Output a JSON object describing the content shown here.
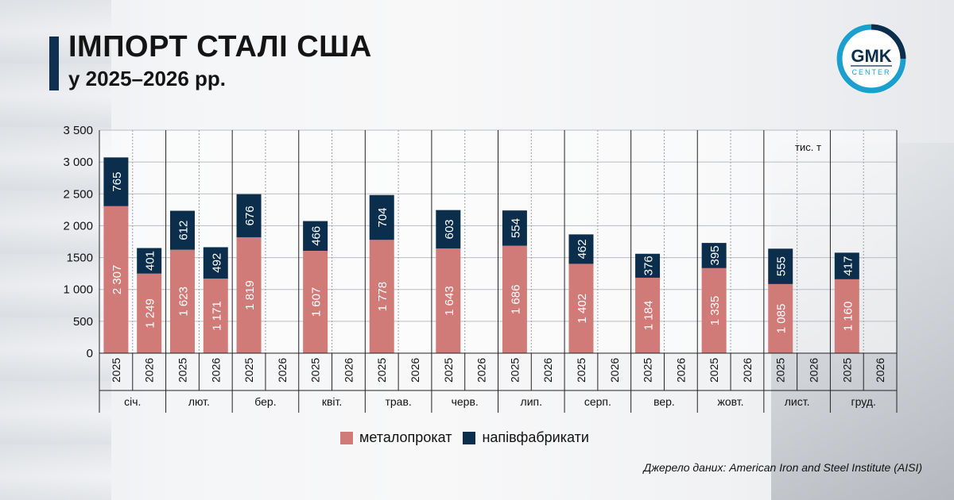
{
  "header": {
    "title": "ІМПОРТ СТАЛІ США",
    "subtitle": "у 2025–2026 рр."
  },
  "logo": {
    "top": "GMK",
    "bottom": "CENTER"
  },
  "unit_label": "тис. т",
  "legend": {
    "items": [
      {
        "label": "металопрокат",
        "color": "#d17b78"
      },
      {
        "label": "напівфабрикати",
        "color": "#0c2e4d"
      }
    ]
  },
  "source": "Джерело даних: American Iron and Steel Institute (AISI)",
  "colors": {
    "rolled": "#d17b78",
    "semi": "#0c2e4d",
    "title_bar": "#0f3050",
    "logo_ring": "#1a9fcf"
  },
  "chart_data": {
    "type": "bar",
    "stacked": true,
    "ylim": [
      0,
      3500
    ],
    "yticks": [
      0,
      500,
      1000,
      1500,
      2000,
      2500,
      3000,
      3500
    ],
    "ytick_labels": [
      "0",
      "500",
      "1 000",
      "1500",
      "2 000",
      "2 500",
      "3 000",
      "3 500"
    ],
    "grid": true,
    "legend_position": "bottom",
    "months": [
      "січ.",
      "лют.",
      "бер.",
      "квіт.",
      "трав.",
      "черв.",
      "лип.",
      "серп.",
      "вер.",
      "жовт.",
      "лист.",
      "груд."
    ],
    "years": [
      "2025",
      "2026"
    ],
    "series": [
      {
        "name": "металопрокат",
        "values_2025": [
          2307,
          1623,
          1819,
          1607,
          1778,
          1643,
          1686,
          1402,
          1184,
          1335,
          1085,
          1160
        ],
        "values_2026": [
          1249,
          1171,
          null,
          null,
          null,
          null,
          null,
          null,
          null,
          null,
          null,
          null
        ],
        "labels_2025": [
          "2 307",
          "1 623",
          "1 819",
          "1 607",
          "1 778",
          "1 643",
          "1 686",
          "1 402",
          "1 184",
          "1 335",
          "1 085",
          "1 160"
        ],
        "labels_2026": [
          "1 249",
          "1 171",
          "",
          "",
          "",
          "",
          "",
          "",
          "",
          "",
          "",
          ""
        ]
      },
      {
        "name": "напівфабрикати",
        "values_2025": [
          765,
          612,
          676,
          466,
          704,
          603,
          554,
          462,
          376,
          395,
          555,
          417
        ],
        "values_2026": [
          401,
          492,
          null,
          null,
          null,
          null,
          null,
          null,
          null,
          null,
          null,
          null
        ],
        "labels_2025": [
          "765",
          "612",
          "676",
          "466",
          "704",
          "603",
          "554",
          "462",
          "376",
          "395",
          "555",
          "417"
        ],
        "labels_2026": [
          "401",
          "492",
          "",
          "",
          "",
          "",
          "",
          "",
          "",
          "",
          "",
          ""
        ]
      }
    ]
  }
}
